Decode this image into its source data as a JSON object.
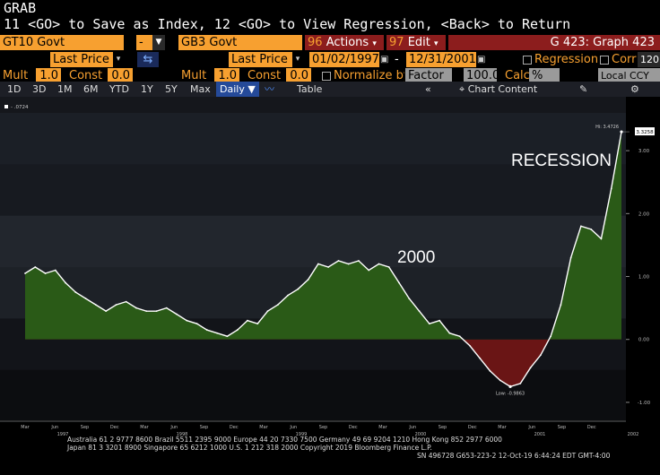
{
  "header": {
    "line1": "GRAB",
    "line2": "11 <GO> to Save as Index, 12 <GO> to View Regression, <Back> to Return"
  },
  "securities": {
    "primary": "GT10 Govt",
    "op": "-",
    "secondary": "GB3 Govt",
    "actions_label": "Actions",
    "actions_num": "96",
    "edit_label": "Edit",
    "edit_num": "97",
    "graph_id": "G 423: Graph 423"
  },
  "row2": {
    "price1": "Last Price",
    "price2": "Last Price",
    "start_date": "01/02/1997",
    "dash": "-",
    "end_date": "12/31/2001",
    "regression_label": "Regression",
    "corr_label": "Corr",
    "corr_value": "120"
  },
  "row3": {
    "mult1_label": "Mult",
    "mult1_value": "1.0",
    "const1_label": "Const",
    "const1_value": "0.0",
    "mult2_label": "Mult",
    "mult2_value": "1.0",
    "const2_label": "Const",
    "const2_value": "0.0",
    "normalize_label": "Normalize by",
    "factor_label": "Factor",
    "factor_value": "100.0",
    "calc_label": "Calc",
    "calc_value": "%",
    "ccy": "Local CCY"
  },
  "toolbar": {
    "periods": [
      "1D",
      "3D",
      "1M",
      "6M",
      "YTD",
      "1Y",
      "5Y",
      "Max"
    ],
    "frequency": "Daily",
    "table": "Table",
    "chart_content": "Chart Content"
  },
  "chart_data": {
    "type": "area",
    "title": "",
    "legend_label": "- .0724",
    "annotations": [
      "2000",
      "RECESSION"
    ],
    "hi_label": "Hi: 3.4726",
    "low_label": "Low: -0.9863",
    "last_value_label": "3.3258",
    "ylim": [
      -1.3,
      3.6
    ],
    "yticks": [
      -1.0,
      0.0,
      1.0,
      2.0,
      3.0
    ],
    "ytick_labels": [
      "-1.00",
      "0.00",
      "1.00",
      "2.00",
      "3.00"
    ],
    "month_ticks": [
      "Mar",
      "Jun",
      "Sep",
      "Dec",
      "Mar",
      "Jun",
      "Sep",
      "Dec",
      "Mar",
      "Jun",
      "Sep",
      "Dec",
      "Mar",
      "Jun",
      "Sep",
      "Dec",
      "Mar",
      "Jun",
      "Sep",
      "Dec"
    ],
    "year_ticks": [
      "1997",
      "1998",
      "1999",
      "2000",
      "2001",
      "2002"
    ],
    "x": [
      "1997-01",
      "1997-02",
      "1997-03",
      "1997-04",
      "1997-05",
      "1997-06",
      "1997-07",
      "1997-08",
      "1997-09",
      "1997-10",
      "1997-11",
      "1997-12",
      "1998-01",
      "1998-02",
      "1998-03",
      "1998-04",
      "1998-05",
      "1998-06",
      "1998-07",
      "1998-08",
      "1998-09",
      "1998-10",
      "1998-11",
      "1998-12",
      "1999-01",
      "1999-02",
      "1999-03",
      "1999-04",
      "1999-05",
      "1999-06",
      "1999-07",
      "1999-08",
      "1999-09",
      "1999-10",
      "1999-11",
      "1999-12",
      "2000-01",
      "2000-02",
      "2000-03",
      "2000-04",
      "2000-05",
      "2000-06",
      "2000-07",
      "2000-08",
      "2000-09",
      "2000-10",
      "2000-11",
      "2000-12",
      "2001-01",
      "2001-02",
      "2001-03",
      "2001-04",
      "2001-05",
      "2001-06",
      "2001-07",
      "2001-08",
      "2001-09",
      "2001-10",
      "2001-11",
      "2001-12"
    ],
    "values": [
      1.05,
      1.15,
      1.05,
      1.1,
      0.9,
      0.75,
      0.65,
      0.55,
      0.45,
      0.55,
      0.6,
      0.5,
      0.45,
      0.45,
      0.5,
      0.4,
      0.3,
      0.25,
      0.15,
      0.1,
      0.05,
      0.15,
      0.3,
      0.25,
      0.45,
      0.55,
      0.7,
      0.8,
      0.95,
      1.2,
      1.15,
      1.25,
      1.2,
      1.25,
      1.1,
      1.2,
      1.15,
      0.9,
      0.65,
      0.45,
      0.25,
      0.3,
      0.1,
      0.05,
      -0.1,
      -0.3,
      -0.5,
      -0.65,
      -0.75,
      -0.7,
      -0.45,
      -0.25,
      0.05,
      0.55,
      1.3,
      1.8,
      1.75,
      1.6,
      2.4,
      3.3
    ],
    "line_color": "#ffffff",
    "positive_fill": "#2a5a17",
    "negative_fill": "#6a1515",
    "grid": false
  },
  "footer": {
    "line1": "Australia 61 2 9777 8600 Brazil 5511 2395 9000 Europe 44 20 7330 7500 Germany 49 69 9204 1210 Hong Kong 852 2977 6000",
    "line2": "Japan 81 3 3201 8900      Singapore 65 6212 1000      U.S. 1 212 318 2000          Copyright 2019 Bloomberg Finance L.P.",
    "line3": "SN 496728 G653-223-2 12-Oct-19  6:44:24 EDT  GMT-4:00"
  }
}
